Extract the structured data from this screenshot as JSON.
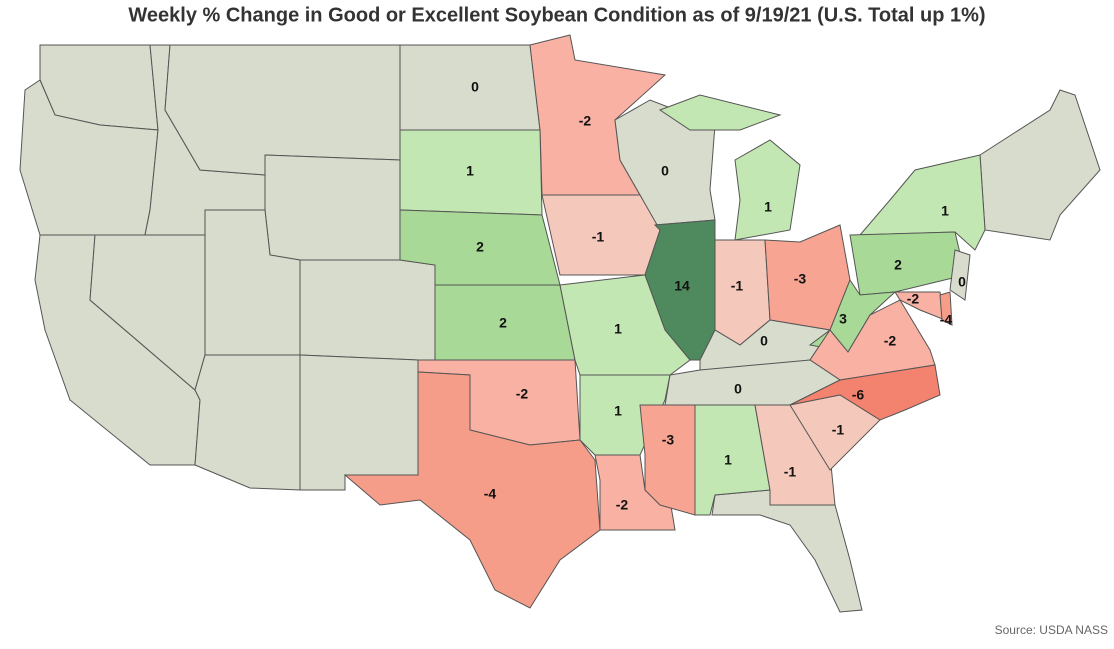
{
  "title": "Weekly % Change in Good or Excellent Soybean Condition as of 9/19/21 (U.S. Total up 1%)",
  "source": "Source: USDA NASS",
  "states": [
    {
      "value": 0,
      "color": "#d7dccc"
    },
    {
      "value": -2,
      "color": "#f8b1a3"
    },
    {
      "value": 1,
      "color": "#c3e7b2"
    },
    {
      "value": 0,
      "color": "#d7dccc"
    },
    {
      "value": 1,
      "color": "#c3e7b2"
    },
    {
      "value": 1,
      "color": "#c3e7b2"
    },
    {
      "value": 2,
      "color": "#a8d996"
    },
    {
      "value": -1,
      "color": "#f4c8bb"
    },
    {
      "value": 14,
      "color": "#4e8a5d"
    },
    {
      "value": -1,
      "color": "#f4c8bb"
    },
    {
      "value": -3,
      "color": "#f7a493"
    },
    {
      "value": 2,
      "color": "#a8d996"
    },
    {
      "value": 0,
      "color": "#d7dccc"
    },
    {
      "value": 2,
      "color": "#a8d996"
    },
    {
      "value": 1,
      "color": "#c3e7b2"
    },
    {
      "value": 0,
      "color": "#d7dccc"
    },
    {
      "value": 3,
      "color": "#a8d996"
    },
    {
      "value": -2,
      "color": "#f8b1a3"
    },
    {
      "value": -4,
      "color": "#f59d88"
    },
    {
      "value": -2,
      "color": "#f8b1a3"
    },
    {
      "value": -2,
      "color": "#f8b1a3"
    },
    {
      "value": 1,
      "color": "#c3e7b2"
    },
    {
      "value": 0,
      "color": "#d7dccc"
    },
    {
      "value": -6,
      "color": "#f3826f"
    },
    {
      "value": -4,
      "color": "#f59d88"
    },
    {
      "value": -2,
      "color": "#f8b1a3"
    },
    {
      "value": -3,
      "color": "#f7a493"
    },
    {
      "value": 1,
      "color": "#c3e7b2"
    },
    {
      "value": -1,
      "color": "#f4c8bb"
    },
    {
      "value": -1,
      "color": "#f4c8bb"
    }
  ]
}
